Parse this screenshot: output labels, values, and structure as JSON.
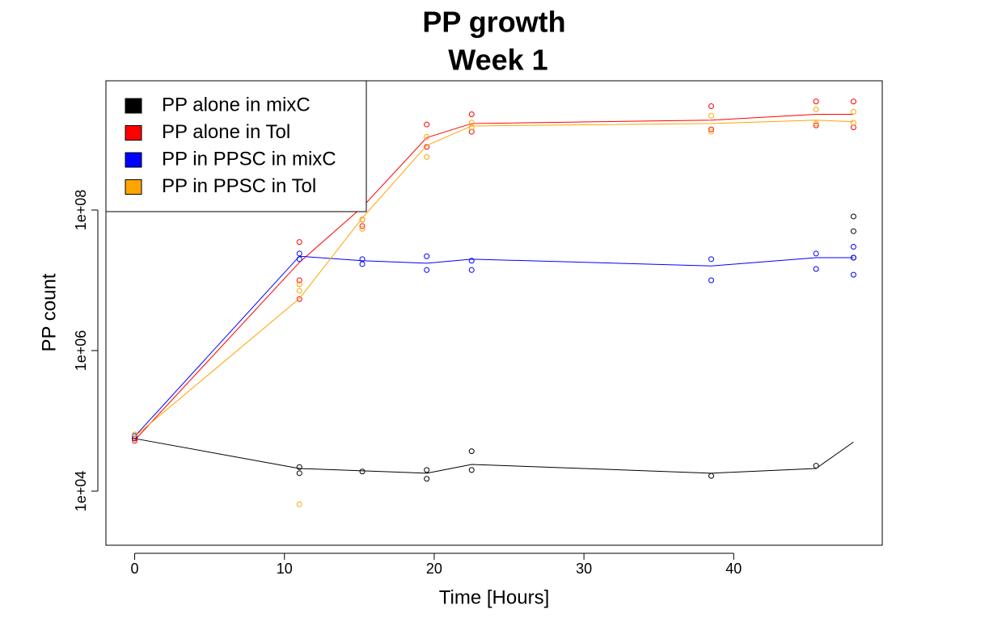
{
  "chart_data": {
    "type": "line",
    "title": "PP growth",
    "subtitle": "Week 1",
    "x_label": "Time [Hours]",
    "y_label": "PP count",
    "log_y": true,
    "legend_position": "top-left",
    "xlim": [
      -1.92,
      49.92
    ],
    "xticks": [
      0,
      10,
      20,
      30,
      40
    ],
    "ylim": [
      1700,
      6900000000
    ],
    "yticks": [
      {
        "value": 10000,
        "label": "1e+04"
      },
      {
        "value": 1000000,
        "label": "1e+06"
      },
      {
        "value": 100000000,
        "label": "1e+08"
      }
    ],
    "series": [
      {
        "name": "PP alone in mixC",
        "color": "#000000",
        "x": [
          0,
          11,
          19.5,
          22.5,
          38.5,
          45.5,
          48
        ],
        "values": [
          56000,
          21000,
          18000,
          24000,
          18000,
          21000,
          50000
        ],
        "points": {
          "x": [
            0,
            11,
            11,
            15.2,
            19.5,
            19.5,
            22.5,
            22.5,
            38.5,
            45.5,
            48,
            48,
            48
          ],
          "y": [
            56000,
            22000,
            18000,
            19000,
            20000,
            15000,
            37000,
            20000,
            16500,
            23000,
            81000000,
            50000000,
            21000000
          ]
        }
      },
      {
        "name": "PP alone in Tol",
        "color": "#ff0000",
        "x": [
          0,
          11,
          15.2,
          19.5,
          22.5,
          38.5,
          45.5,
          48
        ],
        "values": [
          53000,
          18000000,
          110000000,
          1070000000,
          1700000000,
          1900000000,
          2300000000,
          2300000000
        ],
        "points": {
          "x": [
            0,
            11,
            11,
            11,
            15.2,
            15.2,
            19.5,
            19.5,
            22.5,
            22.5,
            38.5,
            38.5,
            45.5,
            45.5,
            48,
            48
          ],
          "y": [
            52000,
            35000000,
            10000000,
            5400000,
            73000000,
            59000000,
            1650000000,
            790000000,
            2300000000,
            1300000000,
            3000000000,
            1400000000,
            3500000000,
            1600000000,
            3500000000,
            1500000000
          ]
        }
      },
      {
        "name": "PP in PPSC in mixC",
        "color": "#0000ff",
        "x": [
          0,
          11,
          15.2,
          19.5,
          22.5,
          38.5,
          45.5,
          48
        ],
        "values": [
          60000,
          22000000,
          19000000,
          17500000,
          20000000,
          16000000,
          21000000,
          21000000
        ],
        "points": {
          "x": [
            0,
            11,
            11,
            15.2,
            15.2,
            19.5,
            19.5,
            22.5,
            22.5,
            38.5,
            38.5,
            45.5,
            45.5,
            48,
            48,
            48
          ],
          "y": [
            61000,
            24000000,
            20000000,
            20000000,
            17000000,
            22000000,
            14000000,
            19000000,
            14000000,
            20000000,
            10000000,
            24000000,
            14500000,
            30000000,
            21000000,
            12000000
          ]
        }
      },
      {
        "name": "PP in PPSC in Tol",
        "color": "#ffa500",
        "x": [
          0,
          11,
          15.2,
          19.5,
          22.5,
          38.5,
          45.5,
          48
        ],
        "values": [
          60000,
          5500000,
          77000000,
          830000000,
          1570000000,
          1700000000,
          1900000000,
          1800000000
        ],
        "points": {
          "x": [
            0,
            11,
            11,
            11,
            15.2,
            15.2,
            19.5,
            19.5,
            22.5,
            22.5,
            38.5,
            38.5,
            45.5,
            45.5,
            48,
            48
          ],
          "y": [
            64000,
            6500,
            8800000,
            7100000,
            73000000,
            54000000,
            1100000000,
            570000000,
            1750000000,
            1500000000,
            2200000000,
            1300000000,
            2700000000,
            1700000000,
            2500000000,
            1750000000
          ]
        }
      }
    ]
  }
}
